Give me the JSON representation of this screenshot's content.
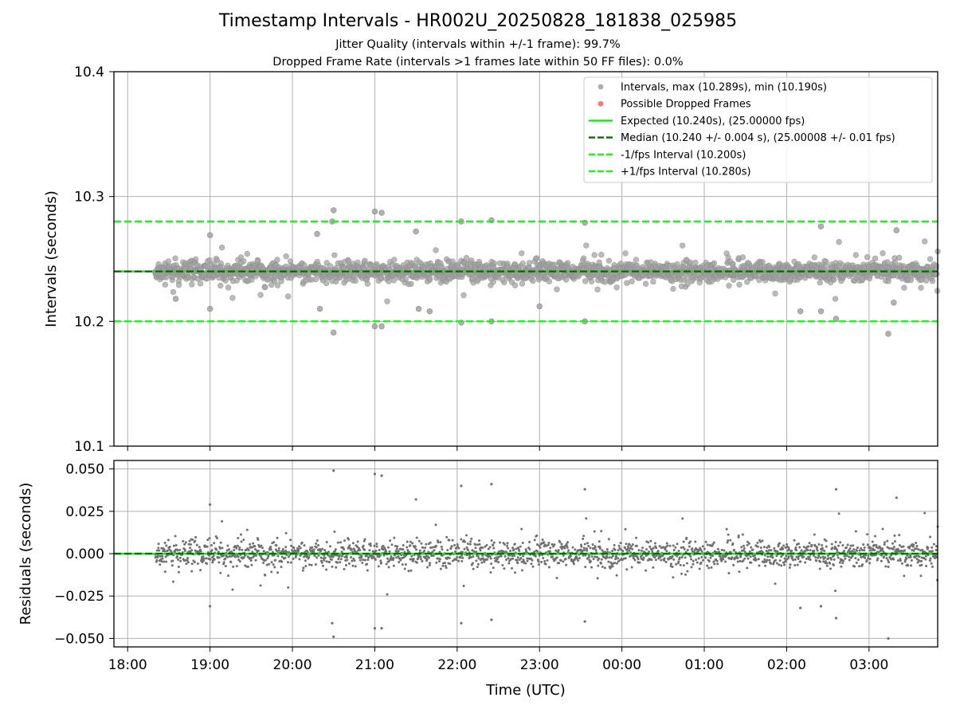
{
  "chart_data": [
    {
      "type": "scatter",
      "title": "Timestamp Intervals - HR002U_20250828_181838_025985",
      "subtitle_lines": [
        "Jitter Quality (intervals within +/-1 frame): 99.7%",
        "Dropped Frame Rate (intervals >1 frames late within 50 FF files): 0.0%"
      ],
      "xlabel": "",
      "ylabel": "Intervals (seconds)",
      "xlim": [
        "17:50",
        "03:50"
      ],
      "ylim": [
        10.1,
        10.4
      ],
      "yticks": [
        "10.1",
        "10.2",
        "10.3",
        "10.4"
      ],
      "grid": true,
      "legend_position": "top-right",
      "legend": [
        {
          "label": "Intervals, max (10.289s), min (10.190s)",
          "kind": "dot",
          "color": "#a0a0a0"
        },
        {
          "label": "Possible Dropped Frames",
          "kind": "dot",
          "color": "#ff6060"
        },
        {
          "label": "Expected (10.240s), (25.00000 fps)",
          "kind": "solid",
          "color": "#22dd22"
        },
        {
          "label": "Median (10.240 +/- 0.004 s), (25.00008 +/- 0.01 fps)",
          "kind": "dashed",
          "color": "#007000"
        },
        {
          "label": "-1/fps Interval (10.200s)",
          "kind": "dashed",
          "color": "#22ee22"
        },
        {
          "label": "+1/fps Interval (10.280s)",
          "kind": "dashed",
          "color": "#22ee22"
        }
      ],
      "reference_lines": {
        "expected": 10.24,
        "median": 10.24,
        "minus_1fps": 10.2,
        "plus_1fps": 10.28
      },
      "series": [
        {
          "name": "Intervals, max (10.289s), min (10.190s)",
          "summary": {
            "time_start": "18:20",
            "time_end": "03:50",
            "max": 10.289,
            "min": 10.19,
            "median": 10.24,
            "typical_spread": 0.004
          },
          "outliers": [
            {
              "x": "20:30",
              "y": 10.289
            },
            {
              "x": "21:00",
              "y": 10.288
            },
            {
              "x": "21:05",
              "y": 10.287
            },
            {
              "x": "20:29",
              "y": 10.28
            },
            {
              "x": "22:25",
              "y": 10.281
            },
            {
              "x": "22:03",
              "y": 10.28
            },
            {
              "x": "23:33",
              "y": 10.279
            },
            {
              "x": "02:25",
              "y": 10.276
            },
            {
              "x": "03:20",
              "y": 10.273
            },
            {
              "x": "21:30",
              "y": 10.272
            },
            {
              "x": "20:18",
              "y": 10.27
            },
            {
              "x": "19:00",
              "y": 10.269
            },
            {
              "x": "20:30",
              "y": 10.191
            },
            {
              "x": "03:14",
              "y": 10.19
            },
            {
              "x": "21:05",
              "y": 10.196
            },
            {
              "x": "21:00",
              "y": 10.196
            },
            {
              "x": "22:03",
              "y": 10.199
            },
            {
              "x": "22:25",
              "y": 10.2
            },
            {
              "x": "23:33",
              "y": 10.2
            },
            {
              "x": "02:36",
              "y": 10.202
            },
            {
              "x": "19:00",
              "y": 10.21
            },
            {
              "x": "20:20",
              "y": 10.21
            },
            {
              "x": "21:32",
              "y": 10.21
            },
            {
              "x": "21:40",
              "y": 10.208
            },
            {
              "x": "23:00",
              "y": 10.212
            },
            {
              "x": "02:10",
              "y": 10.208
            },
            {
              "x": "02:25",
              "y": 10.208
            },
            {
              "x": "03:18",
              "y": 10.215
            },
            {
              "x": "18:35",
              "y": 10.218
            }
          ]
        }
      ]
    },
    {
      "type": "scatter",
      "xlabel": "Time (UTC)",
      "ylabel": "Residuals (seconds)",
      "xlim": [
        "17:50",
        "03:50"
      ],
      "ylim": [
        -0.055,
        0.055
      ],
      "xticks": [
        "18:00",
        "19:00",
        "20:00",
        "21:00",
        "22:00",
        "23:00",
        "00:00",
        "01:00",
        "02:00",
        "03:00"
      ],
      "yticks": [
        "−0.050",
        "−0.025",
        "0.000",
        "0.025",
        "0.050"
      ],
      "grid": true,
      "reference_lines": {
        "zero": 0.0
      },
      "series": [
        {
          "name": "Residuals",
          "summary": {
            "time_start": "18:20",
            "time_end": "03:50",
            "max": 0.049,
            "min": -0.05,
            "typical_spread": 0.004
          },
          "outliers": [
            {
              "x": "20:30",
              "y": 0.049
            },
            {
              "x": "21:00",
              "y": 0.047
            },
            {
              "x": "21:05",
              "y": 0.046
            },
            {
              "x": "22:25",
              "y": 0.041
            },
            {
              "x": "22:03",
              "y": 0.04
            },
            {
              "x": "23:33",
              "y": 0.038
            },
            {
              "x": "02:36",
              "y": 0.038
            },
            {
              "x": "03:20",
              "y": 0.033
            },
            {
              "x": "21:30",
              "y": 0.032
            },
            {
              "x": "19:00",
              "y": 0.029
            },
            {
              "x": "20:30",
              "y": -0.049
            },
            {
              "x": "03:14",
              "y": -0.05
            },
            {
              "x": "21:00",
              "y": -0.044
            },
            {
              "x": "21:05",
              "y": -0.044
            },
            {
              "x": "20:29",
              "y": -0.041
            },
            {
              "x": "22:03",
              "y": -0.041
            },
            {
              "x": "22:25",
              "y": -0.039
            },
            {
              "x": "23:33",
              "y": -0.04
            },
            {
              "x": "02:36",
              "y": -0.038
            },
            {
              "x": "19:00",
              "y": -0.031
            },
            {
              "x": "02:10",
              "y": -0.032
            },
            {
              "x": "02:25",
              "y": -0.031
            }
          ]
        }
      ]
    }
  ]
}
